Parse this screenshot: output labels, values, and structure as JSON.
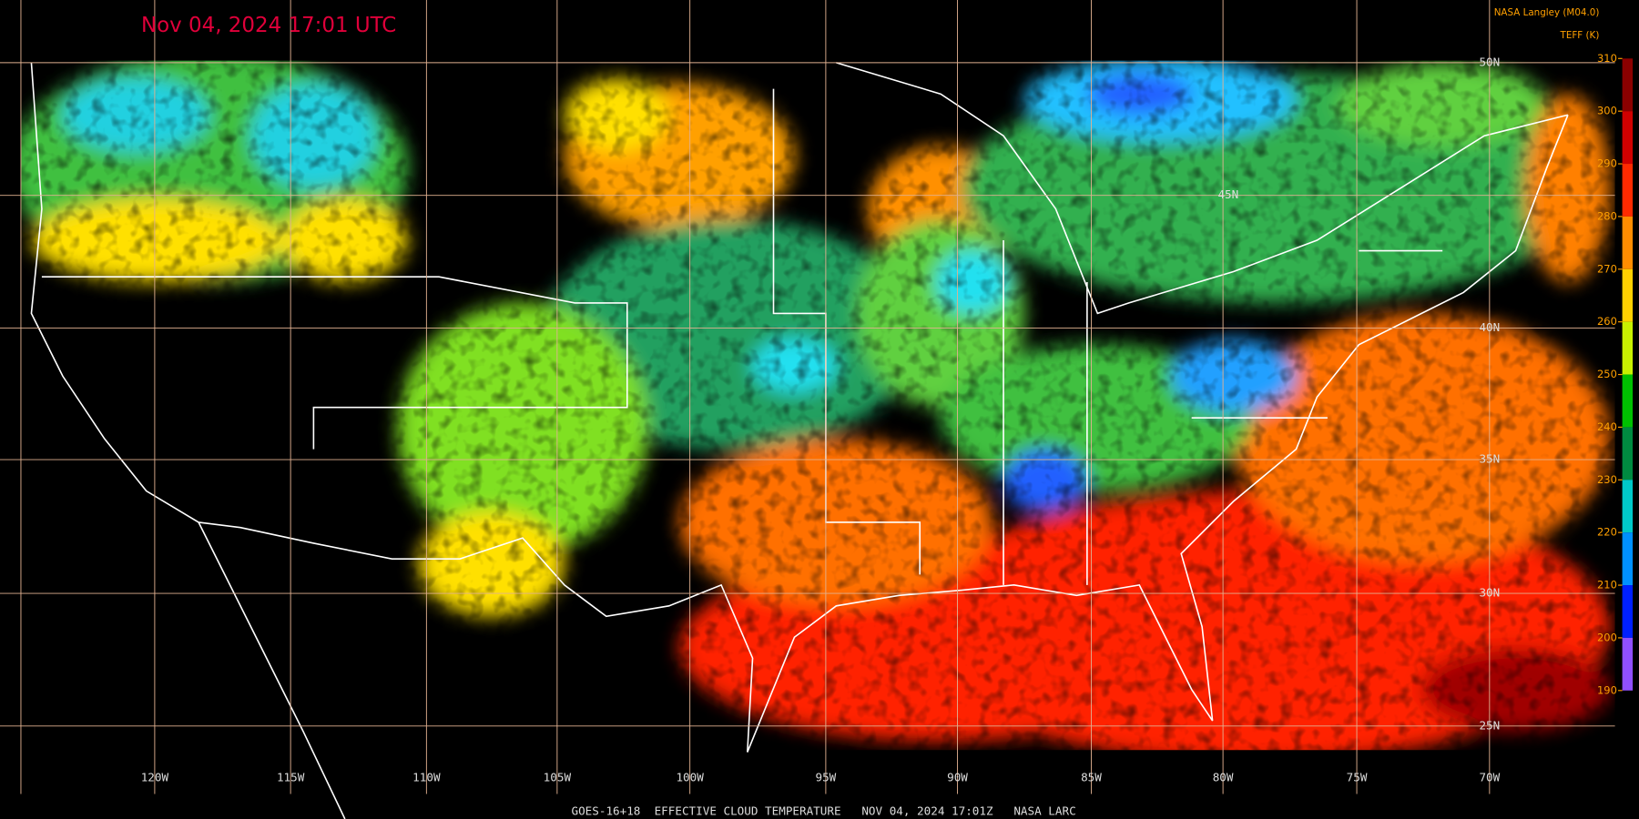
{
  "header": {
    "timestamp": "Nov 04, 2024 17:01 UTC",
    "source": "NASA Langley (M04.0)"
  },
  "colorbar": {
    "title": "TEFF (K)",
    "ticks": [
      310,
      300,
      290,
      280,
      270,
      260,
      250,
      240,
      230,
      220,
      210,
      200,
      190
    ],
    "colors": [
      "#8a0000",
      "#d00000",
      "#ff2a00",
      "#ff8c00",
      "#ffd000",
      "#c8f000",
      "#00c000",
      "#008a40",
      "#00c8c8",
      "#0090ff",
      "#0020ff",
      "#9050ff"
    ]
  },
  "grid": {
    "longitudes": [
      "120W",
      "115W",
      "110W",
      "105W",
      "100W",
      "95W",
      "90W",
      "85W",
      "80W",
      "75W",
      "70W"
    ],
    "latitudes": [
      "50N",
      "45N",
      "40N",
      "35N",
      "30N",
      "25N"
    ]
  },
  "footer": {
    "caption": "GOES-16+18  EFFECTIVE CLOUD TEMPERATURE   NOV 04, 2024 17:01Z   NASA LARC"
  }
}
